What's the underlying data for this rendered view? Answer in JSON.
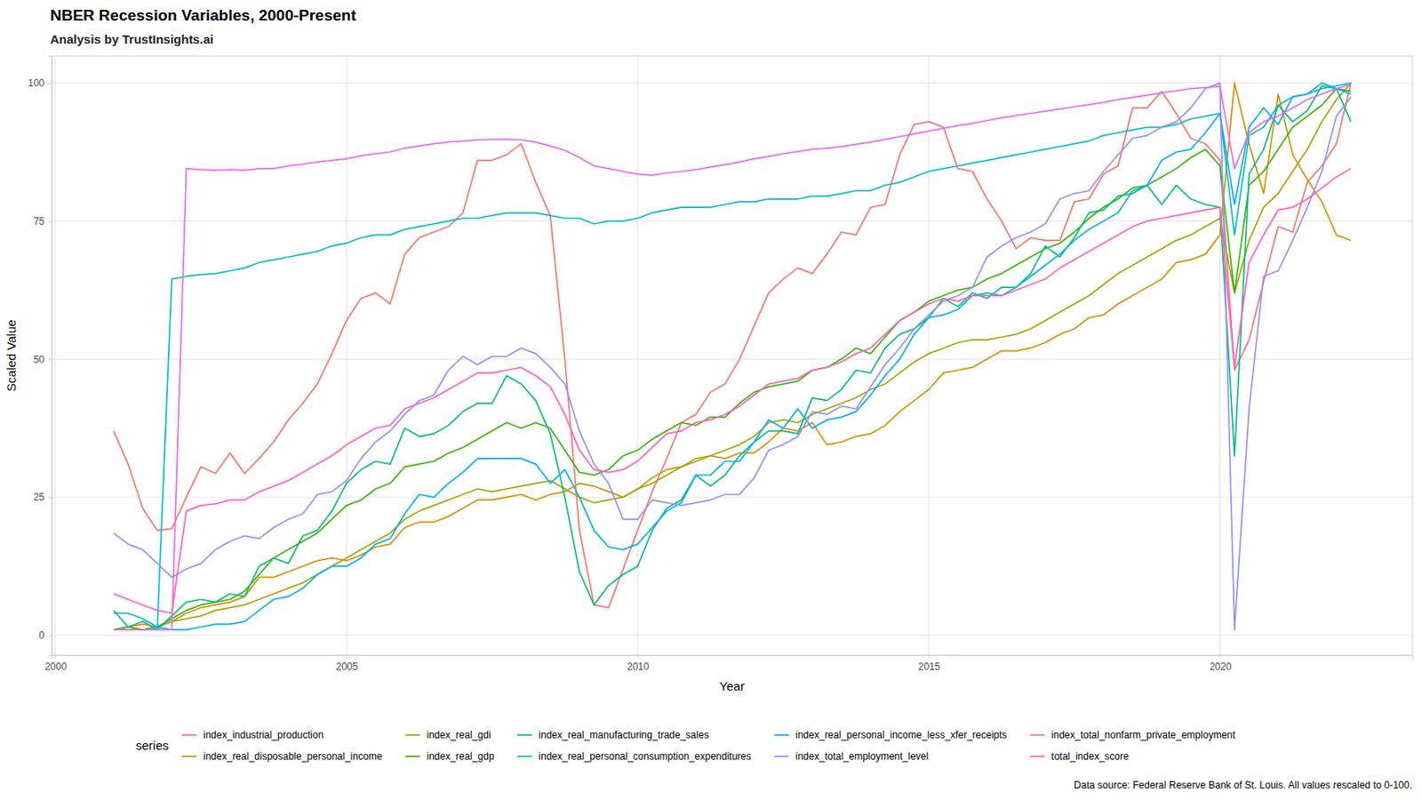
{
  "chart_data": {
    "type": "line",
    "title": "NBER Recession Variables, 2000-Present",
    "subtitle": "Analysis by TrustInsights.ai",
    "x_label": "Year",
    "y_label": "Scaled Value",
    "legend_title": "series",
    "caption": "Data source: Federal Reserve Bank of St. Louis. All values rescaled to 0-100.",
    "grid": true,
    "legend": "bottom",
    "xlim": [
      1999.94,
      2023.3
    ],
    "xticks": [
      2000,
      2005,
      2010,
      2015,
      2020
    ],
    "ylim": [
      -3.6,
      104.9
    ],
    "yticks": [
      0,
      25,
      50,
      75,
      100
    ],
    "x": [
      2001,
      2001.25,
      2001.5,
      2001.75,
      2002,
      2002.25,
      2002.5,
      2002.75,
      2003,
      2003.25,
      2003.5,
      2003.75,
      2004,
      2004.25,
      2004.5,
      2004.75,
      2005,
      2005.25,
      2005.5,
      2005.75,
      2006,
      2006.25,
      2006.5,
      2006.75,
      2007,
      2007.25,
      2007.5,
      2007.75,
      2008,
      2008.25,
      2008.5,
      2008.75,
      2009,
      2009.25,
      2009.5,
      2009.75,
      2010,
      2010.25,
      2010.5,
      2010.75,
      2011,
      2011.25,
      2011.5,
      2011.75,
      2012,
      2012.25,
      2012.5,
      2012.75,
      2013,
      2013.25,
      2013.5,
      2013.75,
      2014,
      2014.25,
      2014.5,
      2014.75,
      2015,
      2015.25,
      2015.5,
      2015.75,
      2016,
      2016.25,
      2016.5,
      2016.75,
      2017,
      2017.25,
      2017.5,
      2017.75,
      2018,
      2018.25,
      2018.5,
      2018.75,
      2019,
      2019.25,
      2019.5,
      2019.75,
      2020,
      2020.25,
      2020.5,
      2020.75,
      2021,
      2021.25,
      2021.5,
      2021.75,
      2022,
      2022.25
    ],
    "series": [
      {
        "name": "index_industrial_production",
        "color": "#F8766D",
        "values": [
          37,
          31,
          23,
          19,
          19.3,
          25,
          30.5,
          29.3,
          33,
          29.3,
          32,
          35,
          39,
          42,
          45.5,
          51,
          57,
          61,
          62,
          60,
          69,
          72,
          73,
          74,
          76.5,
          86,
          86,
          87,
          89,
          82,
          76,
          50,
          19,
          5.5,
          5,
          12,
          19,
          26,
          32,
          38.5,
          40,
          44,
          45.5,
          50,
          56,
          62,
          64.5,
          66.5,
          65.5,
          69,
          73,
          72.5,
          77.5,
          78,
          87,
          92.5,
          93,
          92,
          84.5,
          84,
          79,
          75,
          70,
          72,
          71.5,
          71.5,
          78.5,
          79,
          83.5,
          85,
          95.5,
          95.5,
          98.5,
          94.5,
          90,
          89,
          86,
          48,
          53.5,
          64,
          74,
          73,
          82,
          85,
          89,
          100
        ]
      },
      {
        "name": "index_real_disposable_personal_income",
        "color": "#D89000",
        "values": [
          1,
          1.5,
          2,
          1.5,
          2.5,
          4,
          5,
          5.5,
          6,
          7,
          10.5,
          10.5,
          11.5,
          12.5,
          13.5,
          14,
          13.5,
          14.5,
          16,
          16.5,
          19.5,
          20.5,
          20.5,
          21.5,
          23,
          24.5,
          24.5,
          25,
          25.5,
          24.5,
          25.5,
          26,
          27.5,
          27,
          26,
          25,
          26.5,
          28.5,
          30,
          30.5,
          32,
          32.5,
          32,
          33,
          33,
          35,
          37.5,
          37,
          38.5,
          34.5,
          35,
          36,
          36.5,
          38,
          40.5,
          42.5,
          44.5,
          47.5,
          48,
          48.5,
          50,
          51.5,
          51.5,
          52,
          53,
          54.5,
          55.5,
          57.5,
          58,
          60,
          61.5,
          63,
          64.5,
          67.5,
          68,
          69,
          72.5,
          100,
          89,
          80,
          98,
          87,
          82.5,
          78.5,
          72.5,
          71.5
        ]
      },
      {
        "name": "index_real_gdi",
        "color": "#A3A500",
        "values": [
          1,
          1.5,
          1,
          1.5,
          2.5,
          3,
          3.5,
          4.5,
          5,
          5.5,
          6.5,
          7.5,
          8.5,
          9.5,
          11,
          12.5,
          14,
          15.5,
          17,
          18.5,
          21,
          22.5,
          23.5,
          24.5,
          25.5,
          26.5,
          26,
          26.5,
          27,
          27.5,
          28,
          26.5,
          25,
          24,
          24.5,
          25,
          26.5,
          27.5,
          29,
          30.5,
          31.5,
          32.5,
          33.5,
          34.5,
          36,
          38.5,
          39,
          38.5,
          40,
          41,
          42,
          43,
          44.5,
          45.5,
          47.5,
          49.5,
          51,
          52,
          53,
          53.5,
          53.5,
          54,
          54.5,
          55.5,
          57,
          58.5,
          60,
          61.5,
          63.5,
          65.5,
          67,
          68.5,
          70,
          71.5,
          72.5,
          74,
          75.5,
          62,
          71.5,
          77.5,
          80,
          84,
          88,
          93,
          97,
          100
        ]
      },
      {
        "name": "index_real_gdp",
        "color": "#39B600",
        "values": [
          1,
          1.5,
          1,
          1.5,
          3,
          4.5,
          5.5,
          6,
          6.5,
          8,
          11,
          14,
          15.5,
          17,
          18.5,
          21,
          23.5,
          24.5,
          26.5,
          27.5,
          30.5,
          31,
          31.5,
          33,
          34,
          35.5,
          37,
          38.5,
          37.5,
          38.5,
          37.5,
          33.5,
          29.5,
          29,
          30,
          32.5,
          33.5,
          35.5,
          37,
          38.5,
          38,
          39.5,
          39.5,
          42,
          44,
          45,
          45.5,
          46,
          48,
          48.5,
          50,
          52,
          51,
          54,
          57,
          58.5,
          60.5,
          61.5,
          62.5,
          63,
          64.5,
          65.5,
          67,
          68.5,
          70,
          71,
          73,
          75.5,
          77.5,
          79,
          81,
          81.5,
          83,
          84.5,
          86.5,
          88,
          85,
          62,
          81.5,
          84,
          88,
          92,
          94,
          96,
          99,
          98.5
        ]
      },
      {
        "name": "index_real_manufacturing_trade_sales",
        "color": "#00BF7D",
        "values": [
          4.5,
          1.5,
          2.5,
          1,
          3.5,
          6,
          6.5,
          6,
          7.5,
          7,
          12.5,
          14,
          13,
          18,
          19,
          22.5,
          27.5,
          30,
          31.5,
          31,
          37.5,
          36,
          36.5,
          38,
          40.5,
          42,
          42,
          47,
          45.5,
          42.5,
          36.5,
          25,
          11.5,
          5.5,
          9,
          11,
          12.5,
          19,
          23,
          24.5,
          29,
          27,
          29,
          32.5,
          35,
          37,
          37,
          36.5,
          43,
          42.5,
          44.5,
          48,
          47.5,
          52,
          54.5,
          55.5,
          57.5,
          61,
          59.5,
          62,
          61,
          63,
          63,
          65.5,
          70.5,
          68.5,
          72,
          76.5,
          77,
          79.5,
          80,
          81.5,
          78,
          81.5,
          79,
          78,
          77.5,
          32.5,
          83.5,
          88,
          96,
          93,
          95,
          99.5,
          99,
          93
        ]
      },
      {
        "name": "index_real_personal_consumption_expenditures",
        "color": "#00BFC4",
        "values": [
          1,
          1,
          1,
          1,
          64.5,
          65,
          65.3,
          65.5,
          66,
          66.5,
          67.5,
          68,
          68.5,
          69,
          69.5,
          70.5,
          71,
          72,
          72.5,
          72.5,
          73.5,
          74,
          74.5,
          75,
          75.5,
          75.5,
          76,
          76.5,
          76.5,
          76.5,
          76,
          75.5,
          75.5,
          74.5,
          75,
          75,
          75.5,
          76.5,
          77,
          77.5,
          77.5,
          77.5,
          78,
          78.5,
          78.5,
          79,
          79,
          79,
          79.5,
          79.5,
          80,
          80.5,
          80.5,
          81.5,
          82,
          83,
          84,
          84.5,
          85,
          85.5,
          86,
          86.5,
          87,
          87.5,
          88,
          88.5,
          89,
          89.5,
          90.5,
          91,
          91.5,
          92,
          92,
          92.5,
          93.5,
          94,
          94.5,
          72.5,
          90.5,
          92,
          96,
          97.5,
          98,
          99,
          99.5,
          100
        ]
      },
      {
        "name": "index_real_personal_income_less_xfer_receipts",
        "color": "#00B0F6",
        "values": [
          4,
          4,
          3,
          1.5,
          1,
          1,
          1.5,
          2,
          2,
          2.5,
          4.5,
          6.5,
          7,
          8.5,
          11,
          12.5,
          12.5,
          14,
          16.5,
          17.5,
          22,
          25.5,
          25,
          27.5,
          29.5,
          32,
          32,
          32,
          32,
          31,
          27.5,
          30,
          25,
          19,
          16,
          15.5,
          16.5,
          19.5,
          22.5,
          24,
          29,
          29,
          31.5,
          31.5,
          35,
          39,
          37.5,
          41,
          37.5,
          39,
          39.5,
          40.5,
          43.5,
          47,
          50,
          54.5,
          57.5,
          58,
          59,
          61.5,
          62,
          61.5,
          63,
          65,
          67,
          69,
          71.5,
          73.5,
          75,
          76.5,
          80.5,
          81.5,
          86,
          87.5,
          88,
          91,
          94.5,
          78,
          92,
          95.5,
          92.5,
          97.5,
          98,
          100,
          99,
          98
        ]
      },
      {
        "name": "index_total_employment_level",
        "color": "#9590FF",
        "values": [
          18.5,
          16.5,
          15.5,
          13,
          10.5,
          12,
          13,
          15.5,
          17,
          18,
          17.5,
          19.5,
          21,
          22,
          25.5,
          26,
          28,
          32,
          35,
          37,
          40,
          42.5,
          43.5,
          48,
          50.5,
          49,
          50.5,
          50.5,
          52,
          51,
          48.5,
          45.5,
          37,
          31,
          27.5,
          21,
          21,
          24.5,
          24,
          23.5,
          24,
          24.5,
          25.5,
          25.5,
          28.5,
          33.5,
          34.5,
          36,
          40.5,
          40,
          41.5,
          41,
          45,
          49,
          52,
          55.5,
          58,
          60.5,
          61.5,
          63,
          68.5,
          70.5,
          72,
          73,
          74.5,
          79,
          80,
          80.5,
          84,
          87,
          90,
          90.5,
          92,
          93,
          95.5,
          99,
          100,
          1,
          41,
          65,
          66,
          71.5,
          77.5,
          84,
          94,
          97.5
        ]
      },
      {
        "name": "index_total_nonfarm_private_employment",
        "color": "#E76BF3",
        "values": [
          1,
          1,
          1,
          1,
          1,
          84.5,
          84.3,
          84.2,
          84.3,
          84.2,
          84.5,
          84.5,
          85,
          85.3,
          85.7,
          86,
          86.3,
          86.8,
          87.2,
          87.5,
          88.2,
          88.6,
          89,
          89.3,
          89.5,
          89.7,
          89.8,
          89.8,
          89.7,
          89.3,
          88.6,
          87.8,
          86.5,
          85,
          84.5,
          84,
          83.5,
          83.3,
          83.7,
          84,
          84.3,
          84.8,
          85.2,
          85.7,
          86.3,
          86.7,
          87.2,
          87.6,
          88,
          88.2,
          88.5,
          88.9,
          89.3,
          89.8,
          90.3,
          90.8,
          91.3,
          91.8,
          92.3,
          92.7,
          93.2,
          93.7,
          94.1,
          94.5,
          94.9,
          95.3,
          95.7,
          96.1,
          96.5,
          97,
          97.4,
          97.8,
          98.2,
          98.6,
          99,
          99.2,
          99.4,
          84.5,
          91,
          93,
          94,
          95.5,
          97,
          98,
          99,
          99.8
        ]
      },
      {
        "name": "total_index_score",
        "color": "#FF62BC",
        "values": [
          7.5,
          6.5,
          5.5,
          4.5,
          4,
          22.5,
          23.5,
          23.8,
          24.5,
          24.5,
          26,
          27,
          28,
          29.5,
          31,
          32.5,
          34.5,
          36,
          37.5,
          38,
          41,
          42,
          43,
          44.5,
          46,
          47.5,
          47.5,
          48,
          48.5,
          47,
          45,
          40,
          33.5,
          30,
          29.5,
          30,
          31.5,
          34,
          36.5,
          37,
          38.5,
          39,
          40,
          41.5,
          43.5,
          45.5,
          46,
          46.5,
          48,
          48.5,
          49.5,
          51,
          52,
          54.5,
          57,
          58.5,
          60,
          61,
          60.5,
          61.5,
          61.5,
          61.5,
          62.5,
          63.5,
          64.5,
          66.5,
          68,
          69.5,
          71,
          72.5,
          74,
          75,
          75.5,
          76,
          76.5,
          77,
          77.5,
          48.5,
          67.5,
          72.5,
          77,
          77.5,
          79,
          81,
          83,
          84.5
        ]
      }
    ]
  }
}
